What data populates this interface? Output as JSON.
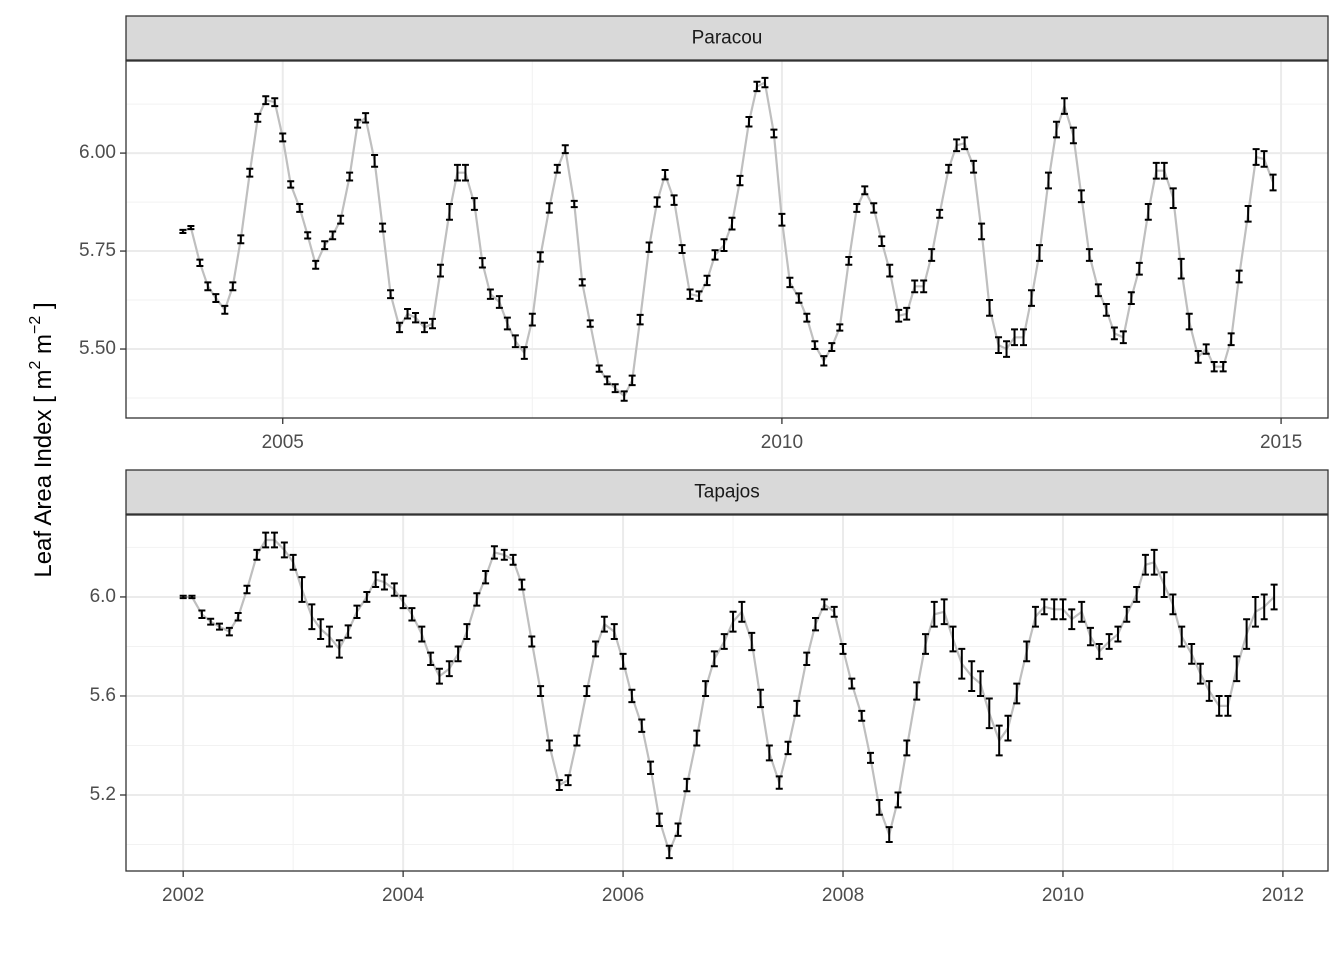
{
  "y_label": [
    "Leaf Area Index [ m",
    "2",
    " m",
    "−2",
    " ]"
  ],
  "chart_data": [
    {
      "type": "errorbar-line",
      "title": "Paracou",
      "x": [
        2004,
        2004.08,
        2004.17,
        2004.25,
        2004.33,
        2004.42,
        2004.5,
        2004.58,
        2004.67,
        2004.75,
        2004.83,
        2004.92,
        2005,
        2005.08,
        2005.17,
        2005.25,
        2005.33,
        2005.42,
        2005.5,
        2005.58,
        2005.67,
        2005.75,
        2005.83,
        2005.92,
        2006,
        2006.08,
        2006.17,
        2006.25,
        2006.33,
        2006.42,
        2006.5,
        2006.58,
        2006.67,
        2006.75,
        2006.83,
        2006.92,
        2007,
        2007.08,
        2007.17,
        2007.25,
        2007.33,
        2007.42,
        2007.5,
        2007.58,
        2007.67,
        2007.75,
        2007.83,
        2007.92,
        2008,
        2008.08,
        2008.17,
        2008.25,
        2008.33,
        2008.42,
        2008.5,
        2008.58,
        2008.67,
        2008.75,
        2008.83,
        2008.92,
        2009,
        2009.08,
        2009.17,
        2009.25,
        2009.33,
        2009.42,
        2009.5,
        2009.58,
        2009.67,
        2009.75,
        2009.83,
        2009.92,
        2010,
        2010.08,
        2010.17,
        2010.25,
        2010.33,
        2010.42,
        2010.5,
        2010.58,
        2010.67,
        2010.75,
        2010.83,
        2010.92,
        2011,
        2011.08,
        2011.17,
        2011.25,
        2011.33,
        2011.42,
        2011.5,
        2011.58,
        2011.67,
        2011.75,
        2011.83,
        2011.92,
        2012,
        2012.08,
        2012.17,
        2012.25,
        2012.33,
        2012.42,
        2012.5,
        2012.58,
        2012.67,
        2012.75,
        2012.83,
        2012.92,
        2013,
        2013.08,
        2013.17,
        2013.25,
        2013.33,
        2013.42,
        2013.5,
        2013.58,
        2013.67,
        2013.75,
        2013.83,
        2013.92,
        2014,
        2014.08,
        2014.17,
        2014.25,
        2014.33,
        2014.42,
        2014.5,
        2014.58,
        2014.67,
        2014.75,
        2014.83,
        2014.92
      ],
      "values": [
        5.8,
        5.81,
        5.72,
        5.66,
        5.63,
        5.6,
        5.66,
        5.78,
        5.95,
        6.09,
        6.135,
        6.13,
        6.04,
        5.92,
        5.86,
        5.79,
        5.715,
        5.765,
        5.79,
        5.83,
        5.94,
        6.075,
        6.09,
        5.98,
        5.81,
        5.64,
        5.555,
        5.59,
        5.58,
        5.555,
        5.565,
        5.7,
        5.85,
        5.95,
        5.95,
        5.87,
        5.72,
        5.64,
        5.62,
        5.565,
        5.52,
        5.49,
        5.575,
        5.735,
        5.86,
        5.96,
        6.01,
        5.87,
        5.67,
        5.565,
        5.45,
        5.42,
        5.4,
        5.38,
        5.42,
        5.575,
        5.76,
        5.875,
        5.945,
        5.88,
        5.755,
        5.64,
        5.635,
        5.675,
        5.74,
        5.765,
        5.82,
        5.93,
        6.08,
        6.17,
        6.18,
        6.05,
        5.83,
        5.67,
        5.63,
        5.58,
        5.51,
        5.47,
        5.505,
        5.555,
        5.725,
        5.86,
        5.905,
        5.86,
        5.775,
        5.7,
        5.585,
        5.59,
        5.66,
        5.66,
        5.74,
        5.845,
        5.96,
        6.02,
        6.025,
        5.965,
        5.8,
        5.605,
        5.51,
        5.5,
        5.53,
        5.53,
        5.63,
        5.745,
        5.93,
        6.06,
        6.12,
        6.045,
        5.89,
        5.74,
        5.65,
        5.6,
        5.54,
        5.53,
        5.63,
        5.705,
        5.85,
        5.955,
        5.955,
        5.885,
        5.705,
        5.57,
        5.48,
        5.5,
        5.455,
        5.455,
        5.525,
        5.685,
        5.845,
        5.99,
        5.985,
        5.925
      ],
      "errors": [
        0.004,
        0.004,
        0.008,
        0.01,
        0.01,
        0.01,
        0.01,
        0.01,
        0.01,
        0.01,
        0.01,
        0.01,
        0.01,
        0.008,
        0.01,
        0.008,
        0.01,
        0.01,
        0.01,
        0.01,
        0.01,
        0.01,
        0.012,
        0.015,
        0.01,
        0.01,
        0.012,
        0.012,
        0.012,
        0.012,
        0.012,
        0.015,
        0.02,
        0.02,
        0.02,
        0.015,
        0.012,
        0.012,
        0.015,
        0.015,
        0.015,
        0.015,
        0.015,
        0.012,
        0.012,
        0.01,
        0.01,
        0.008,
        0.008,
        0.008,
        0.008,
        0.01,
        0.01,
        0.012,
        0.012,
        0.012,
        0.012,
        0.012,
        0.012,
        0.012,
        0.01,
        0.012,
        0.012,
        0.012,
        0.012,
        0.015,
        0.015,
        0.012,
        0.012,
        0.012,
        0.012,
        0.01,
        0.015,
        0.012,
        0.012,
        0.01,
        0.01,
        0.012,
        0.01,
        0.008,
        0.01,
        0.01,
        0.01,
        0.012,
        0.012,
        0.015,
        0.015,
        0.015,
        0.015,
        0.015,
        0.015,
        0.01,
        0.01,
        0.015,
        0.015,
        0.015,
        0.02,
        0.02,
        0.02,
        0.02,
        0.02,
        0.02,
        0.02,
        0.02,
        0.02,
        0.02,
        0.02,
        0.02,
        0.015,
        0.015,
        0.015,
        0.015,
        0.015,
        0.015,
        0.015,
        0.015,
        0.02,
        0.02,
        0.02,
        0.025,
        0.025,
        0.02,
        0.015,
        0.012,
        0.012,
        0.012,
        0.015,
        0.015,
        0.02,
        0.02,
        0.02,
        0.02
      ],
      "line_color": "#bfbfbf",
      "bar_color": "#000000",
      "xlim": [
        2003.43,
        2015.47
      ],
      "xticks": [
        2005,
        2010,
        2015
      ],
      "xminor": [
        2007.5,
        2012.5
      ],
      "ylim": [
        5.324,
        6.235
      ],
      "yticks": [
        {
          "value": 5.5,
          "label": "5.50"
        },
        {
          "value": 5.75,
          "label": "5.75"
        },
        {
          "value": 6,
          "label": "6.00"
        }
      ],
      "yminor": [
        5.375,
        5.625,
        5.875,
        6.125
      ],
      "grid": true
    },
    {
      "type": "errorbar-line",
      "title": "Tapajos",
      "x": [
        2002,
        2002.08,
        2002.17,
        2002.25,
        2002.33,
        2002.42,
        2002.5,
        2002.58,
        2002.67,
        2002.75,
        2002.83,
        2002.92,
        2003,
        2003.08,
        2003.17,
        2003.25,
        2003.33,
        2003.42,
        2003.5,
        2003.58,
        2003.67,
        2003.75,
        2003.83,
        2003.92,
        2004,
        2004.08,
        2004.17,
        2004.25,
        2004.33,
        2004.42,
        2004.5,
        2004.58,
        2004.67,
        2004.75,
        2004.83,
        2004.92,
        2005,
        2005.08,
        2005.17,
        2005.25,
        2005.33,
        2005.42,
        2005.5,
        2005.58,
        2005.67,
        2005.75,
        2005.83,
        2005.92,
        2006,
        2006.08,
        2006.17,
        2006.25,
        2006.33,
        2006.42,
        2006.5,
        2006.58,
        2006.67,
        2006.75,
        2006.83,
        2006.92,
        2007,
        2007.08,
        2007.17,
        2007.25,
        2007.33,
        2007.42,
        2007.5,
        2007.58,
        2007.67,
        2007.75,
        2007.83,
        2007.92,
        2008,
        2008.08,
        2008.17,
        2008.25,
        2008.33,
        2008.42,
        2008.5,
        2008.58,
        2008.67,
        2008.75,
        2008.83,
        2008.92,
        2009,
        2009.08,
        2009.17,
        2009.25,
        2009.33,
        2009.42,
        2009.5,
        2009.58,
        2009.67,
        2009.75,
        2009.83,
        2009.92,
        2010,
        2010.08,
        2010.17,
        2010.25,
        2010.33,
        2010.42,
        2010.5,
        2010.58,
        2010.67,
        2010.75,
        2010.83,
        2010.92,
        2011,
        2011.08,
        2011.17,
        2011.25,
        2011.33,
        2011.42,
        2011.5,
        2011.58,
        2011.67,
        2011.75,
        2011.83,
        2011.92
      ],
      "values": [
        6.0,
        6.0,
        5.93,
        5.9,
        5.88,
        5.86,
        5.92,
        6.03,
        6.17,
        6.23,
        6.23,
        6.19,
        6.14,
        6.03,
        5.92,
        5.87,
        5.84,
        5.79,
        5.86,
        5.94,
        6.0,
        6.07,
        6.06,
        6.03,
        5.98,
        5.93,
        5.85,
        5.75,
        5.68,
        5.71,
        5.77,
        5.86,
        5.99,
        6.08,
        6.18,
        6.17,
        6.15,
        6.05,
        5.82,
        5.62,
        5.4,
        5.24,
        5.26,
        5.42,
        5.62,
        5.79,
        5.89,
        5.86,
        5.74,
        5.6,
        5.48,
        5.31,
        5.1,
        4.97,
        5.06,
        5.24,
        5.43,
        5.63,
        5.75,
        5.82,
        5.9,
        5.94,
        5.82,
        5.59,
        5.37,
        5.25,
        5.39,
        5.55,
        5.75,
        5.89,
        5.97,
        5.94,
        5.79,
        5.65,
        5.52,
        5.35,
        5.15,
        5.04,
        5.18,
        5.39,
        5.62,
        5.81,
        5.93,
        5.94,
        5.83,
        5.73,
        5.68,
        5.65,
        5.53,
        5.42,
        5.47,
        5.61,
        5.78,
        5.92,
        5.96,
        5.95,
        5.95,
        5.91,
        5.94,
        5.84,
        5.78,
        5.82,
        5.85,
        5.93,
        6.01,
        6.13,
        6.14,
        6.05,
        5.97,
        5.84,
        5.77,
        5.69,
        5.62,
        5.56,
        5.56,
        5.71,
        5.85,
        5.94,
        5.96,
        6.0
      ],
      "errors": [
        0.005,
        0.005,
        0.015,
        0.012,
        0.012,
        0.015,
        0.015,
        0.015,
        0.02,
        0.03,
        0.03,
        0.03,
        0.03,
        0.05,
        0.05,
        0.04,
        0.04,
        0.035,
        0.025,
        0.025,
        0.02,
        0.03,
        0.03,
        0.025,
        0.025,
        0.025,
        0.03,
        0.025,
        0.03,
        0.03,
        0.03,
        0.03,
        0.025,
        0.025,
        0.025,
        0.02,
        0.02,
        0.02,
        0.02,
        0.02,
        0.02,
        0.02,
        0.02,
        0.02,
        0.02,
        0.03,
        0.03,
        0.03,
        0.03,
        0.025,
        0.025,
        0.025,
        0.025,
        0.025,
        0.025,
        0.025,
        0.03,
        0.03,
        0.03,
        0.03,
        0.04,
        0.04,
        0.035,
        0.035,
        0.03,
        0.025,
        0.025,
        0.03,
        0.025,
        0.025,
        0.02,
        0.02,
        0.02,
        0.02,
        0.02,
        0.02,
        0.03,
        0.03,
        0.03,
        0.03,
        0.035,
        0.04,
        0.05,
        0.05,
        0.05,
        0.06,
        0.06,
        0.05,
        0.06,
        0.06,
        0.05,
        0.04,
        0.04,
        0.04,
        0.03,
        0.04,
        0.04,
        0.04,
        0.04,
        0.035,
        0.03,
        0.03,
        0.03,
        0.03,
        0.03,
        0.04,
        0.05,
        0.05,
        0.04,
        0.04,
        0.04,
        0.04,
        0.04,
        0.04,
        0.04,
        0.05,
        0.06,
        0.06,
        0.05,
        0.05
      ],
      "line_color": "#bfbfbf",
      "bar_color": "#000000",
      "xlim": [
        2001.48,
        2012.41
      ],
      "xticks": [
        2002,
        2004,
        2006,
        2008,
        2010,
        2012
      ],
      "xminor": [
        2003,
        2005,
        2007,
        2009,
        2011
      ],
      "ylim": [
        4.893,
        6.331
      ],
      "yticks": [
        5.2,
        5.6,
        {
          "value": 6,
          "label": "6.0"
        }
      ],
      "yminor": [
        5.0,
        5.4,
        5.8,
        6.2
      ],
      "grid": true
    }
  ]
}
